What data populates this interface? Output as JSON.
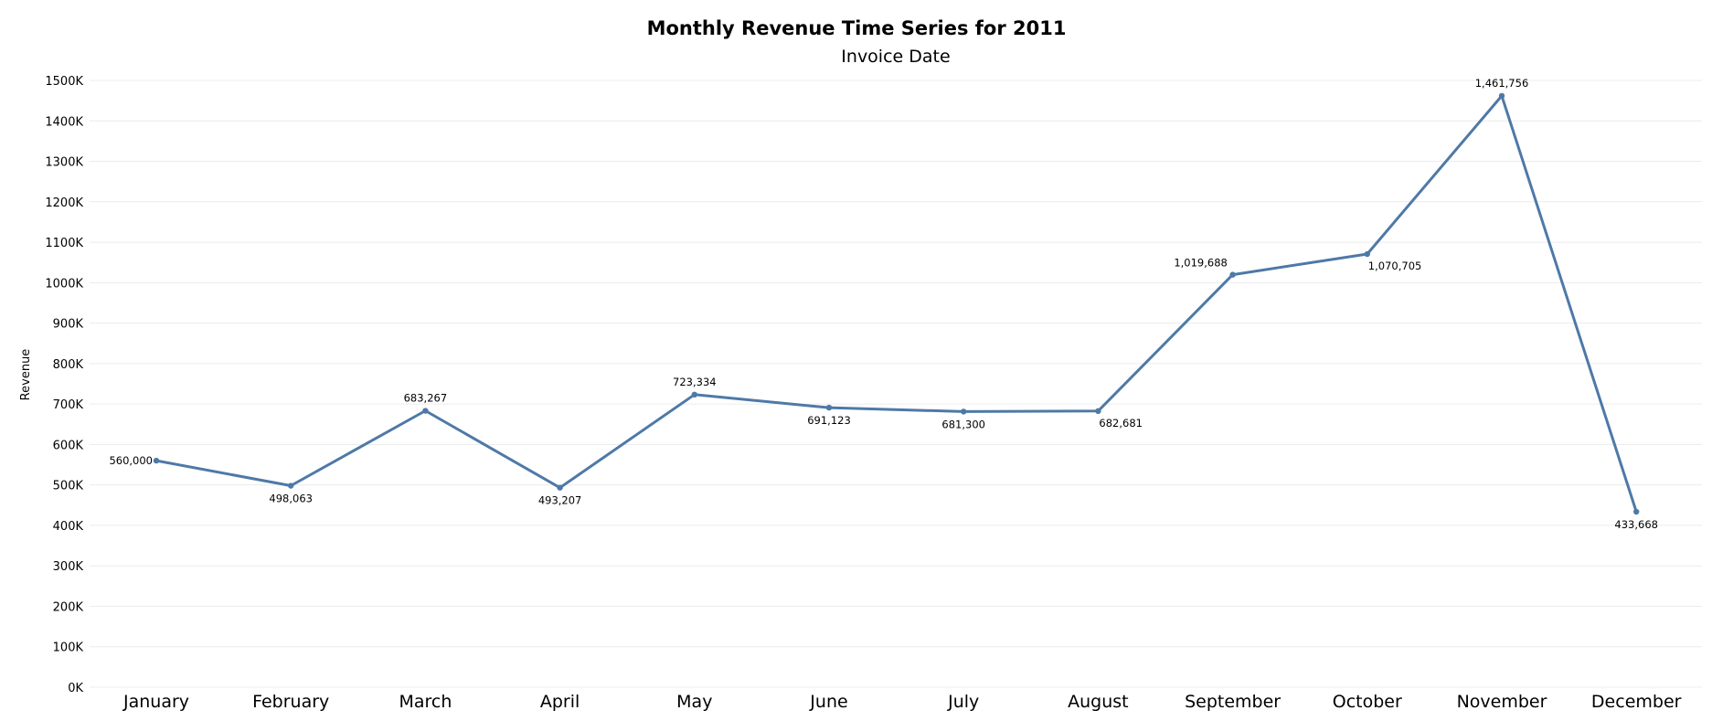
{
  "chart_data": {
    "type": "line",
    "title": "Monthly Revenue Time Series for 2011",
    "subtitle": "Invoice Date",
    "xlabel": "",
    "ylabel": "Revenue",
    "categories": [
      "January",
      "February",
      "March",
      "April",
      "May",
      "June",
      "July",
      "August",
      "September",
      "October",
      "November",
      "December"
    ],
    "series": [
      {
        "values": [
          560000,
          498063,
          683267,
          493207,
          723334,
          691123,
          681300,
          682681,
          1019688,
          1070705,
          1461756,
          433668
        ],
        "value_labels": [
          "560,000",
          "498,063",
          "683,267",
          "493,207",
          "723,334",
          "691,123",
          "681,300",
          "682,681",
          "1,019,688",
          "1,070,705",
          "1,461,756",
          "433,668"
        ],
        "label_positions": [
          "left",
          "below",
          "above",
          "below",
          "above",
          "below",
          "below",
          "below-right",
          "above-left",
          "below-right",
          "above",
          "below"
        ]
      }
    ],
    "ylim": [
      0,
      1500000
    ],
    "yticks": [
      0,
      100000,
      200000,
      300000,
      400000,
      500000,
      600000,
      700000,
      800000,
      900000,
      1000000,
      1100000,
      1200000,
      1300000,
      1400000,
      1500000
    ],
    "ytick_labels": [
      "0K",
      "100K",
      "200K",
      "300K",
      "400K",
      "500K",
      "600K",
      "700K",
      "800K",
      "900K",
      "1000K",
      "1100K",
      "1200K",
      "1300K",
      "1400K",
      "1500K"
    ],
    "grid": true,
    "line_color": "#4e79a7"
  }
}
